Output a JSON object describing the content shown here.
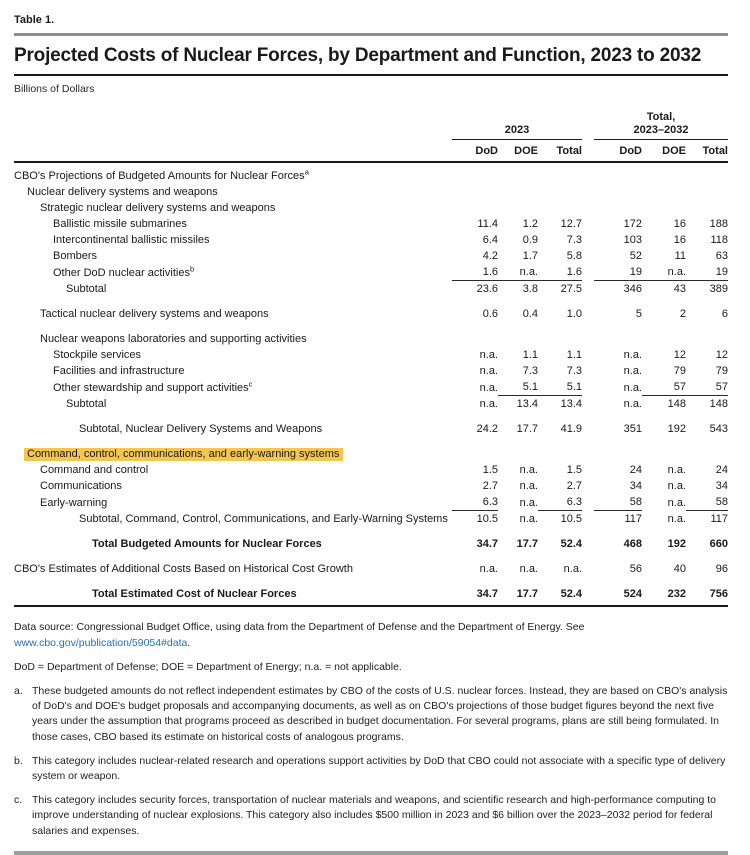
{
  "colors": {
    "highlight": "#f3c64f",
    "link": "#2272b4",
    "rule_gray": "#8f8f8f"
  },
  "page": {
    "table_label": "Table 1.",
    "title": "Projected Costs of Nuclear Forces, by Department and Function, 2023 to 2032",
    "units": "Billions of Dollars"
  },
  "table": {
    "col_groups": [
      {
        "line1": "",
        "line2": "2023"
      },
      {
        "line1": "Total,",
        "line2": "2023–2032"
      }
    ],
    "sub_headers": [
      "DoD",
      "DOE",
      "Total",
      "DoD",
      "DOE",
      "Total"
    ],
    "rows": [
      {
        "label": "CBO's Projections of Budgeted Amounts for Nuclear Forces",
        "sup": "a",
        "indent": 0
      },
      {
        "label": "Nuclear delivery systems and weapons",
        "indent": 1
      },
      {
        "label": "Strategic nuclear delivery systems and weapons",
        "indent": 2
      },
      {
        "label": "Ballistic missile submarines",
        "indent": 3,
        "values": [
          "11.4",
          "1.2",
          "12.7",
          "172",
          "16",
          "188"
        ]
      },
      {
        "label": "Intercontinental ballistic missiles",
        "indent": 3,
        "values": [
          "6.4",
          "0.9",
          "7.3",
          "103",
          "16",
          "118"
        ]
      },
      {
        "label": "Bombers",
        "indent": 3,
        "values": [
          "4.2",
          "1.7",
          "5.8",
          "52",
          "11",
          "63"
        ]
      },
      {
        "label": "Other DoD nuclear activities",
        "sup": "b",
        "indent": 3,
        "values": [
          "1.6",
          "n.a.",
          "1.6",
          "19",
          "n.a.",
          "19"
        ],
        "underline": [
          1,
          1,
          1,
          1,
          1,
          1
        ]
      },
      {
        "label": "Subtotal",
        "indent": 4,
        "values": [
          "23.6",
          "3.8",
          "27.5",
          "346",
          "43",
          "389"
        ],
        "spacer_after": true
      },
      {
        "label": "Tactical nuclear delivery systems and weapons",
        "indent": 2,
        "values": [
          "0.6",
          "0.4",
          "1.0",
          "5",
          "2",
          "6"
        ],
        "spacer_after": true
      },
      {
        "label": "Nuclear weapons laboratories and supporting activities",
        "indent": 2
      },
      {
        "label": "Stockpile services",
        "indent": 3,
        "values": [
          "n.a.",
          "1.1",
          "1.1",
          "n.a.",
          "12",
          "12"
        ]
      },
      {
        "label": "Facilities and infrastructure",
        "indent": 3,
        "values": [
          "n.a.",
          "7.3",
          "7.3",
          "n.a.",
          "79",
          "79"
        ]
      },
      {
        "label": "Other stewardship and support activities",
        "sup": "c",
        "indent": 3,
        "values": [
          "n.a.",
          "5.1",
          "5.1",
          "n.a.",
          "57",
          "57"
        ],
        "underline": [
          0,
          1,
          1,
          0,
          1,
          1
        ]
      },
      {
        "label": "Subtotal",
        "indent": 4,
        "values": [
          "n.a.",
          "13.4",
          "13.4",
          "n.a.",
          "148",
          "148"
        ],
        "spacer_after": true
      },
      {
        "label": "Subtotal, Nuclear Delivery Systems and Weapons",
        "indent": 5,
        "values": [
          "24.2",
          "17.7",
          "41.9",
          "351",
          "192",
          "543"
        ],
        "spacer_after": true
      },
      {
        "label": "Command, control, communications, and early-warning systems",
        "indent": 1,
        "highlight": true
      },
      {
        "label": "Command and control",
        "indent": 2,
        "values": [
          "1.5",
          "n.a.",
          "1.5",
          "24",
          "n.a.",
          "24"
        ]
      },
      {
        "label": "Communications",
        "indent": 2,
        "values": [
          "2.7",
          "n.a.",
          "2.7",
          "34",
          "n.a.",
          "34"
        ]
      },
      {
        "label": "Early-warning",
        "indent": 2,
        "values": [
          "6.3",
          "n.a.",
          "6.3",
          "58",
          "n.a.",
          "58"
        ],
        "underline": [
          1,
          0,
          1,
          1,
          0,
          1
        ]
      },
      {
        "label": "Subtotal, Command, Control, Communications, and Early-Warning Systems",
        "indent": 5,
        "values": [
          "10.5",
          "n.a.",
          "10.5",
          "117",
          "n.a.",
          "117"
        ],
        "spacer_after": true
      },
      {
        "label": "Total Budgeted Amounts for Nuclear Forces",
        "indent": 6,
        "bold": true,
        "values": [
          "34.7",
          "17.7",
          "52.4",
          "468",
          "192",
          "660"
        ],
        "spacer_after": true
      },
      {
        "label": "CBO's Estimates of Additional Costs Based on Historical Cost Growth",
        "indent": 0,
        "values": [
          "n.a.",
          "n.a.",
          "n.a.",
          "56",
          "40",
          "96"
        ],
        "spacer_after": true
      },
      {
        "label": "Total Estimated Cost of Nuclear Forces",
        "indent": 6,
        "bold": true,
        "final": true,
        "values": [
          "34.7",
          "17.7",
          "52.4",
          "524",
          "232",
          "756"
        ]
      }
    ]
  },
  "footer": {
    "data_source_prefix": "Data source: Congressional Budget Office, using data from the Department of Defense and the Department of Energy. See ",
    "data_source_link": "www.cbo.gov/publication/59054#data",
    "data_source_suffix": ".",
    "abbreviations": "DoD = Department of Defense; DOE = Department of Energy; n.a. = not applicable.",
    "footnotes": [
      {
        "marker": "a.",
        "text": "These budgeted amounts do not reflect independent estimates by CBO of the costs of U.S. nuclear forces. Instead, they are based on CBO's analysis of DoD's and DOE's budget proposals and accompanying documents, as well as on CBO's projections of those budget figures beyond the next five years under the assumption that programs proceed as described in budget documentation. For several programs, plans are still being formulated. In those cases, CBO based its estimate on historical costs of analogous programs."
      },
      {
        "marker": "b.",
        "text": "This category includes nuclear-related research and operations support activities by DoD that CBO could not associate with a specific type of delivery system or weapon."
      },
      {
        "marker": "c.",
        "text": "This category includes security forces, transportation of nuclear materials and weapons, and scientific research and high-performance computing to improve understanding of nuclear explosions. This category also includes $500 million in 2023 and $6 billion over the 2023–2032 period for federal salaries and expenses."
      }
    ]
  }
}
